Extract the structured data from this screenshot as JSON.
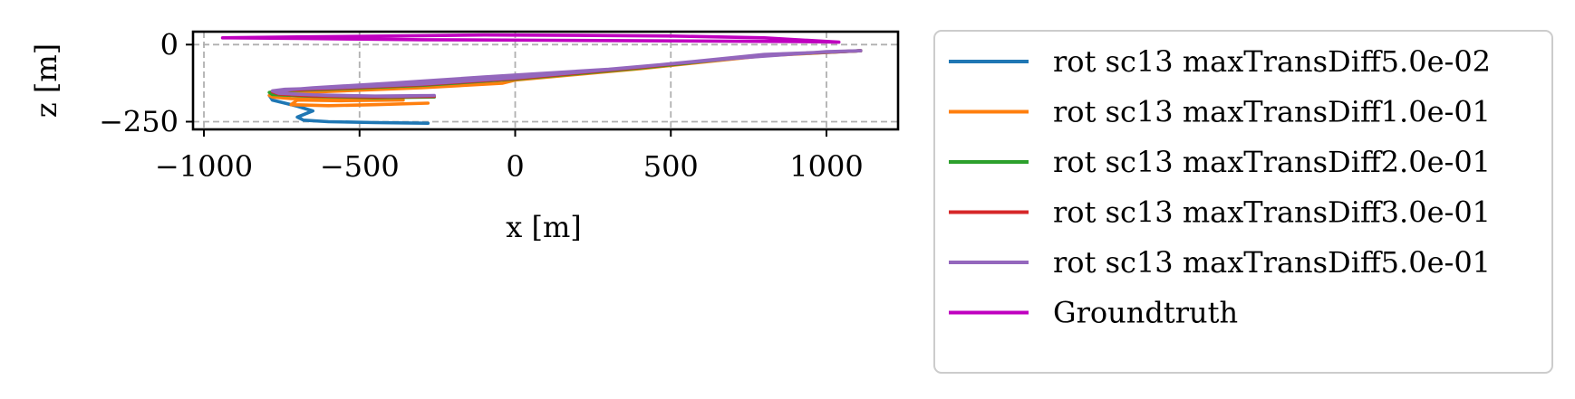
{
  "chart_data": {
    "type": "line",
    "title": "",
    "xlabel": "x [m]",
    "ylabel": "z [m]",
    "xlim": [
      -1035,
      1230
    ],
    "ylim": [
      -275,
      42
    ],
    "grid": true,
    "legend_placement": "outside-right",
    "x_ticks": [
      {
        "value": -1000,
        "label": "−1000"
      },
      {
        "value": -500,
        "label": "−500"
      },
      {
        "value": 0,
        "label": "0"
      },
      {
        "value": 500,
        "label": "500"
      },
      {
        "value": 1000,
        "label": "1000"
      }
    ],
    "y_ticks": [
      {
        "value": 0,
        "label": "0"
      },
      {
        "value": -250,
        "label": "−250"
      }
    ],
    "series": [
      {
        "name": "rot sc13 maxTransDiff5.0e-02",
        "color": "#1f77b4",
        "x": [
          -280,
          -450,
          -600,
          -680,
          -700,
          -650,
          -700,
          -780,
          -790,
          -760,
          -700,
          -500,
          -200,
          0,
          400,
          800,
          1110
        ],
        "y": [
          -255,
          -253,
          -250,
          -245,
          -235,
          -215,
          -200,
          -180,
          -165,
          -160,
          -155,
          -140,
          -120,
          -110,
          -75,
          -35,
          -20
        ]
      },
      {
        "name": "rot sc13 maxTransDiff1.0e-01",
        "color": "#ff7f0e",
        "x": [
          -280,
          -450,
          -600,
          -720,
          -700,
          -560,
          -360,
          -570,
          -720,
          -780,
          -790,
          -760,
          -600,
          -300,
          -40,
          0,
          400,
          800,
          1110
        ],
        "y": [
          -190,
          -195,
          -198,
          -195,
          -180,
          -182,
          -180,
          -178,
          -175,
          -170,
          -165,
          -160,
          -152,
          -140,
          -125,
          -115,
          -78,
          -36,
          -20
        ]
      },
      {
        "name": "rot sc13 maxTransDiff2.0e-01",
        "color": "#2ca02c",
        "x": [
          -260,
          -450,
          -650,
          -780,
          -790,
          -760,
          -600,
          -300,
          0,
          400,
          800,
          1110
        ],
        "y": [
          -170,
          -172,
          -168,
          -162,
          -155,
          -150,
          -145,
          -132,
          -112,
          -76,
          -34,
          -20
        ]
      },
      {
        "name": "rot sc13 maxTransDiff3.0e-01",
        "color": "#d62728",
        "x": [
          -260,
          -450,
          -650,
          -760,
          -780,
          -740,
          -600,
          -300,
          0,
          400,
          800,
          1110
        ],
        "y": [
          -168,
          -170,
          -166,
          -160,
          -153,
          -148,
          -143,
          -130,
          -110,
          -74,
          -33,
          -20
        ]
      },
      {
        "name": "rot sc13 maxTransDiff5.0e-01",
        "color": "#9467bd",
        "x": [
          -260,
          -450,
          -650,
          -760,
          -780,
          -740,
          -580,
          -300,
          0,
          400,
          800,
          1110,
          1000,
          700,
          300,
          -100,
          -400,
          -650,
          -770,
          -720,
          -600,
          -400,
          -260
        ],
        "y": [
          -165,
          -167,
          -163,
          -158,
          -150,
          -145,
          -140,
          -128,
          -108,
          -72,
          -32,
          -20,
          -23,
          -45,
          -80,
          -105,
          -125,
          -140,
          -150,
          -160,
          -165,
          -168,
          -165
        ]
      },
      {
        "name": "Groundtruth",
        "color": "#bf00bf",
        "x": [
          -940,
          -700,
          -400,
          -100,
          200,
          500,
          800,
          1040,
          900,
          500,
          100,
          -300,
          -500,
          -700,
          -940
        ],
        "y": [
          22,
          25,
          28,
          31,
          30,
          28,
          22,
          8,
          10,
          12,
          14,
          16,
          18,
          20,
          22
        ]
      }
    ]
  }
}
